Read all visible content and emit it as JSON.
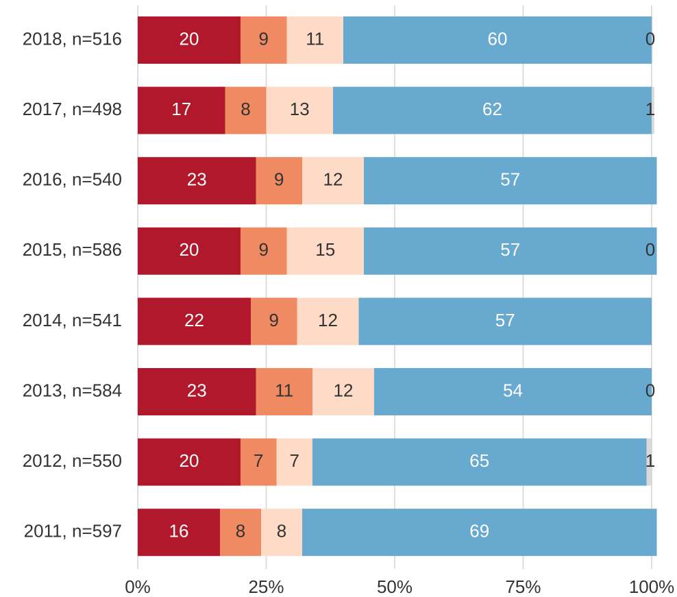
{
  "chart_data": {
    "type": "bar",
    "orientation": "horizontal",
    "stacked": true,
    "xlim": [
      0,
      100
    ],
    "x_ticks": [
      "0%",
      "25%",
      "50%",
      "75%",
      "100%"
    ],
    "grid": true,
    "categories": [
      "2018, n=516",
      "2017, n=498",
      "2016, n=540",
      "2015, n=586",
      "2014, n=541",
      "2013, n=584",
      "2012, n=550",
      "2011, n=597"
    ],
    "series": [
      {
        "color": "#b2182b",
        "label_color": "#ffffff",
        "values": [
          20,
          17,
          23,
          20,
          22,
          23,
          20,
          16
        ],
        "labels": [
          "20",
          "17",
          "23",
          "20",
          "22",
          "23",
          "20",
          "16"
        ]
      },
      {
        "color": "#ef8a62",
        "label_color": "#333333",
        "values": [
          9,
          8,
          9,
          9,
          9,
          11,
          7,
          8
        ],
        "labels": [
          "9",
          "8",
          "9",
          "9",
          "9",
          "11",
          "7",
          "8"
        ]
      },
      {
        "color": "#fddbc7",
        "label_color": "#333333",
        "values": [
          11,
          13,
          12,
          15,
          12,
          12,
          7,
          8
        ],
        "labels": [
          "11",
          "13",
          "12",
          "15",
          "12",
          "12",
          "7",
          "8"
        ]
      },
      {
        "color": "#67a9cf",
        "label_color": "#ffffff",
        "values": [
          60,
          62,
          57,
          57,
          57,
          54,
          65,
          69
        ],
        "labels": [
          "60",
          "62",
          "57",
          "57",
          "57",
          "54",
          "65",
          "69"
        ]
      },
      {
        "color": "#d9d9d9",
        "label_color": "#333333",
        "values": [
          0.2,
          0.5,
          0,
          0,
          0,
          0,
          1.1,
          0
        ],
        "labels": [
          "0",
          "1",
          "",
          "0",
          "",
          "0",
          "1",
          ""
        ]
      }
    ]
  }
}
